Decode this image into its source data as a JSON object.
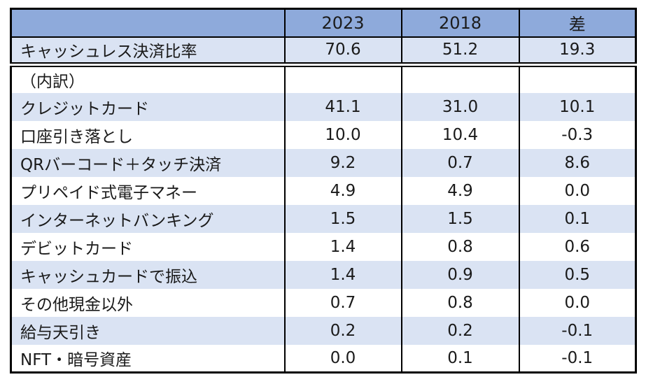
{
  "colors": {
    "header_bg": "#8EAADB",
    "band_bg": "#DAE3F3",
    "plain_bg": "#FFFFFF",
    "border": "#000000",
    "text": "#1A1A1A"
  },
  "chart_data": {
    "type": "table",
    "title": "",
    "columns": [
      "",
      "2023",
      "2018",
      "差"
    ],
    "rows": [
      {
        "label": "キャッシュレス決済比率",
        "values": [
          "70.6",
          "51.2",
          "19.3"
        ],
        "style": "summary"
      },
      {
        "label": "（内訳）",
        "values": [
          "",
          "",
          ""
        ],
        "style": "section"
      },
      {
        "label": "クレジットカード",
        "values": [
          "41.1",
          "31.0",
          "10.1"
        ],
        "style": "band"
      },
      {
        "label": "口座引き落とし",
        "values": [
          "10.0",
          "10.4",
          "-0.3"
        ],
        "style": "plain"
      },
      {
        "label": "QRバーコード＋タッチ決済",
        "values": [
          "9.2",
          "0.7",
          "8.6"
        ],
        "style": "band"
      },
      {
        "label": "プリペイド式電子マネー",
        "values": [
          "4.9",
          "4.9",
          "0.0"
        ],
        "style": "plain"
      },
      {
        "label": "インターネットバンキング",
        "values": [
          "1.5",
          "1.5",
          "0.1"
        ],
        "style": "band"
      },
      {
        "label": "デビットカード",
        "values": [
          "1.4",
          "0.8",
          "0.6"
        ],
        "style": "plain"
      },
      {
        "label": "キャッシュカードで振込",
        "values": [
          "1.4",
          "0.9",
          "0.5"
        ],
        "style": "band"
      },
      {
        "label": "その他現金以外",
        "values": [
          "0.7",
          "0.8",
          "0.0"
        ],
        "style": "plain"
      },
      {
        "label": "給与天引き",
        "values": [
          "0.2",
          "0.2",
          "-0.1"
        ],
        "style": "band"
      },
      {
        "label": "NFT・暗号資産",
        "values": [
          "0.0",
          "0.1",
          "-0.1"
        ],
        "style": "plain"
      }
    ]
  }
}
